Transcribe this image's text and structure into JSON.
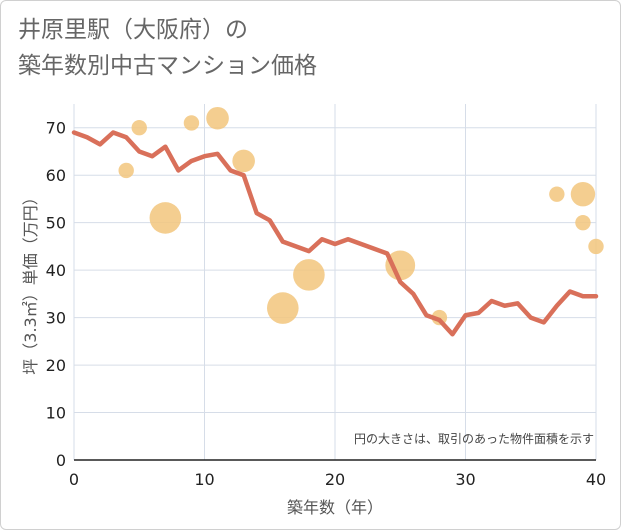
{
  "title": "井原里駅（大阪府）の\n築年数別中古マンション価格",
  "chart_data": {
    "type": "line+scatter",
    "xlabel": "築年数（年）",
    "ylabel": "坪（3.3㎡）単価（万円）",
    "xlim": [
      0,
      40
    ],
    "ylim": [
      0,
      75
    ],
    "x_ticks": [
      0,
      10,
      20,
      30,
      40
    ],
    "y_ticks": [
      0,
      10,
      20,
      30,
      40,
      50,
      60,
      70
    ],
    "grid": true,
    "note": "円の大きさは、取引のあった物件面積を示す",
    "line": {
      "color": "#d9705a",
      "x": [
        0,
        1,
        2,
        3,
        4,
        5,
        6,
        7,
        8,
        9,
        10,
        11,
        12,
        13,
        14,
        15,
        16,
        17,
        18,
        19,
        20,
        21,
        22,
        23,
        24,
        25,
        26,
        27,
        28,
        29,
        30,
        31,
        32,
        33,
        34,
        35,
        36,
        37,
        38,
        39,
        40
      ],
      "y": [
        69,
        68,
        66.5,
        69,
        68,
        65,
        64,
        66,
        61,
        63,
        64,
        64.5,
        61,
        60,
        52,
        50.5,
        46,
        45,
        44,
        46.5,
        45.5,
        46.5,
        45.5,
        44.5,
        43.5,
        37.5,
        35,
        30.5,
        29.5,
        26.5,
        30.5,
        31,
        33.5,
        32.5,
        33,
        30,
        29,
        32.5,
        35.5,
        34.5,
        34.5
      ]
    },
    "bubbles": {
      "color": "#f2c57d",
      "points": [
        {
          "x": 4,
          "y": 61,
          "size": 3
        },
        {
          "x": 5,
          "y": 70,
          "size": 3
        },
        {
          "x": 7,
          "y": 51,
          "size": 12
        },
        {
          "x": 9,
          "y": 71,
          "size": 3
        },
        {
          "x": 11,
          "y": 72,
          "size": 7
        },
        {
          "x": 13,
          "y": 63,
          "size": 7
        },
        {
          "x": 16,
          "y": 32,
          "size": 12
        },
        {
          "x": 18,
          "y": 39,
          "size": 12
        },
        {
          "x": 25,
          "y": 41,
          "size": 11
        },
        {
          "x": 28,
          "y": 30,
          "size": 3
        },
        {
          "x": 37,
          "y": 56,
          "size": 3
        },
        {
          "x": 39,
          "y": 56,
          "size": 8
        },
        {
          "x": 39,
          "y": 50,
          "size": 3
        },
        {
          "x": 40,
          "y": 45,
          "size": 3
        }
      ]
    }
  }
}
